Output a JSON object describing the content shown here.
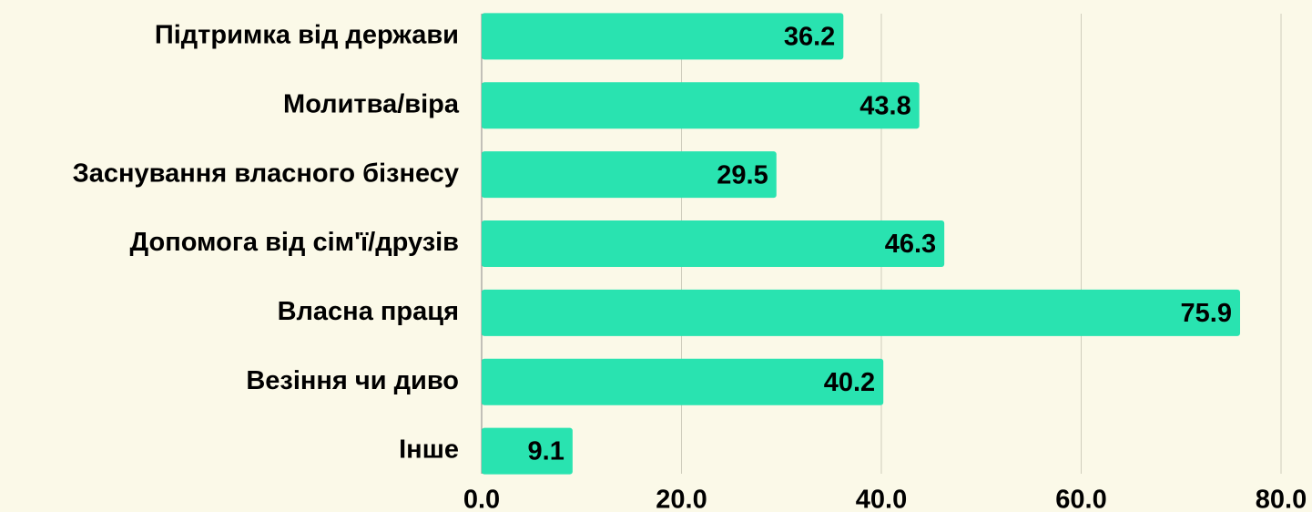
{
  "chart_data": {
    "type": "bar",
    "orientation": "horizontal",
    "categories": [
      "Підтримка від держави",
      "Молитва/віра",
      "Заснування власного бізнесу",
      "Допомога від сім'ї/друзів",
      "Власна праця",
      "Везіння чи диво",
      "Інше"
    ],
    "values": [
      36.2,
      43.8,
      29.5,
      46.3,
      75.9,
      40.2,
      9.1
    ],
    "color": "#29e3b0",
    "xlim": [
      0,
      80
    ],
    "xticks": [
      {
        "value": 0,
        "label": "0.0"
      },
      {
        "value": 20,
        "label": "20.0"
      },
      {
        "value": 40,
        "label": "40.0"
      },
      {
        "value": 60,
        "label": "60.0"
      },
      {
        "value": 80,
        "label": "80.0"
      }
    ],
    "grid": true
  }
}
